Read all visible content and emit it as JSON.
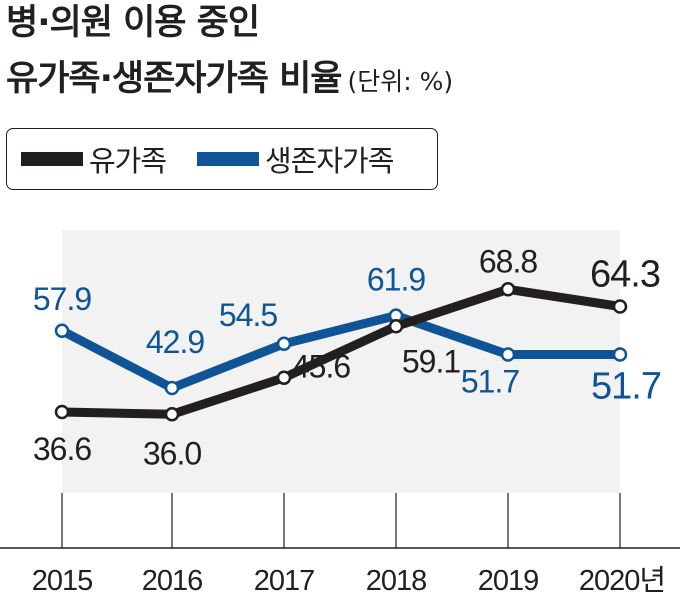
{
  "title_line1": "병·의원 이용 중인",
  "title_line2": "유가족·생존자가족 비율",
  "unit_label": "(단위: %)",
  "chart_data": {
    "type": "line",
    "title": "병·의원 이용 중인 유가족·생존자가족 비율",
    "unit": "%",
    "categories": [
      "2015",
      "2016",
      "2017",
      "2018",
      "2019",
      "2020년"
    ],
    "series": [
      {
        "name": "유가족",
        "color": "#231f20",
        "values": [
          36.6,
          36.0,
          45.6,
          59.1,
          68.8,
          64.3
        ]
      },
      {
        "name": "생존자가족",
        "color": "#0f5496",
        "values": [
          57.9,
          42.9,
          54.5,
          61.9,
          51.7,
          51.7
        ]
      }
    ],
    "legend_position": "top-left",
    "background_band": "#f2f2f2"
  }
}
